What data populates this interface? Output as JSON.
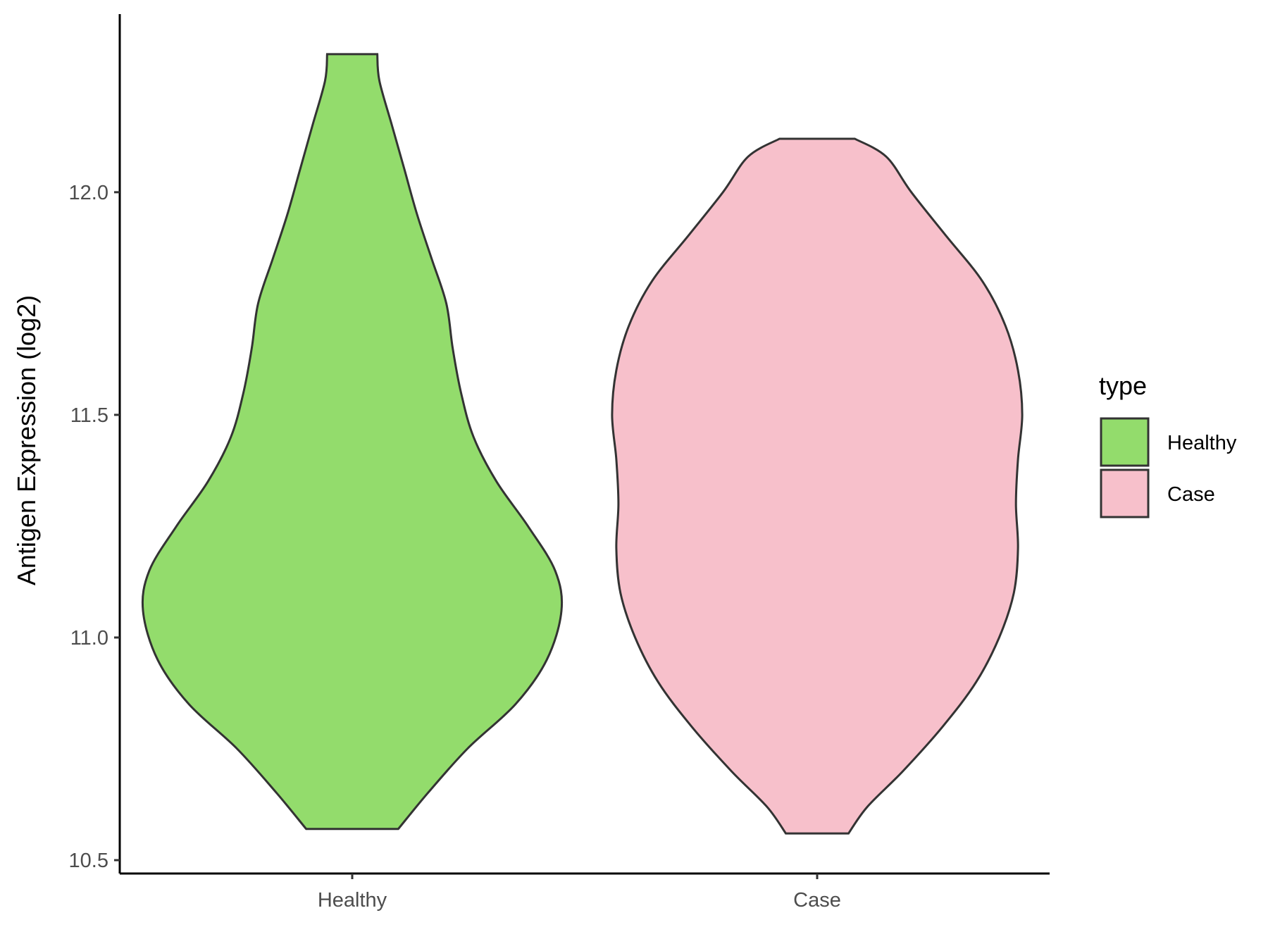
{
  "chart_data": {
    "type": "violin",
    "title": "",
    "xlabel": "",
    "ylabel": "Antigen Expression (log2)",
    "ylim": [
      10.47,
      12.4
    ],
    "y_ticks": [
      "10.5",
      "11.0",
      "11.5",
      "12.0"
    ],
    "y_tick_values": [
      10.5,
      11.0,
      11.5,
      12.0
    ],
    "categories": [
      "Healthy",
      "Case"
    ],
    "grid": false,
    "legend": {
      "title": "type",
      "position": "right",
      "entries": [
        {
          "label": "Healthy",
          "color": "#93DC6C"
        },
        {
          "label": "Case",
          "color": "#F7C0CB"
        }
      ]
    },
    "series": [
      {
        "category": "Healthy",
        "color": "#93DC6C",
        "min": 10.57,
        "max": 12.31,
        "density": [
          [
            10.57,
            0.22
          ],
          [
            10.65,
            0.36
          ],
          [
            10.75,
            0.55
          ],
          [
            10.85,
            0.78
          ],
          [
            10.95,
            0.93
          ],
          [
            11.06,
            1.0
          ],
          [
            11.15,
            0.97
          ],
          [
            11.25,
            0.84
          ],
          [
            11.35,
            0.69
          ],
          [
            11.45,
            0.58
          ],
          [
            11.55,
            0.52
          ],
          [
            11.65,
            0.48
          ],
          [
            11.75,
            0.45
          ],
          [
            11.85,
            0.38
          ],
          [
            11.95,
            0.31
          ],
          [
            12.05,
            0.25
          ],
          [
            12.15,
            0.19
          ],
          [
            12.25,
            0.13
          ],
          [
            12.31,
            0.12
          ]
        ]
      },
      {
        "category": "Case",
        "color": "#F7C0CB",
        "min": 10.56,
        "max": 12.12,
        "density": [
          [
            10.56,
            0.15
          ],
          [
            10.62,
            0.24
          ],
          [
            10.7,
            0.41
          ],
          [
            10.8,
            0.6
          ],
          [
            10.9,
            0.76
          ],
          [
            11.0,
            0.87
          ],
          [
            11.1,
            0.94
          ],
          [
            11.2,
            0.96
          ],
          [
            11.3,
            0.95
          ],
          [
            11.4,
            0.96
          ],
          [
            11.5,
            0.98
          ],
          [
            11.6,
            0.96
          ],
          [
            11.7,
            0.9
          ],
          [
            11.8,
            0.79
          ],
          [
            11.9,
            0.62
          ],
          [
            12.0,
            0.45
          ],
          [
            12.08,
            0.33
          ],
          [
            12.12,
            0.18
          ]
        ]
      }
    ]
  }
}
